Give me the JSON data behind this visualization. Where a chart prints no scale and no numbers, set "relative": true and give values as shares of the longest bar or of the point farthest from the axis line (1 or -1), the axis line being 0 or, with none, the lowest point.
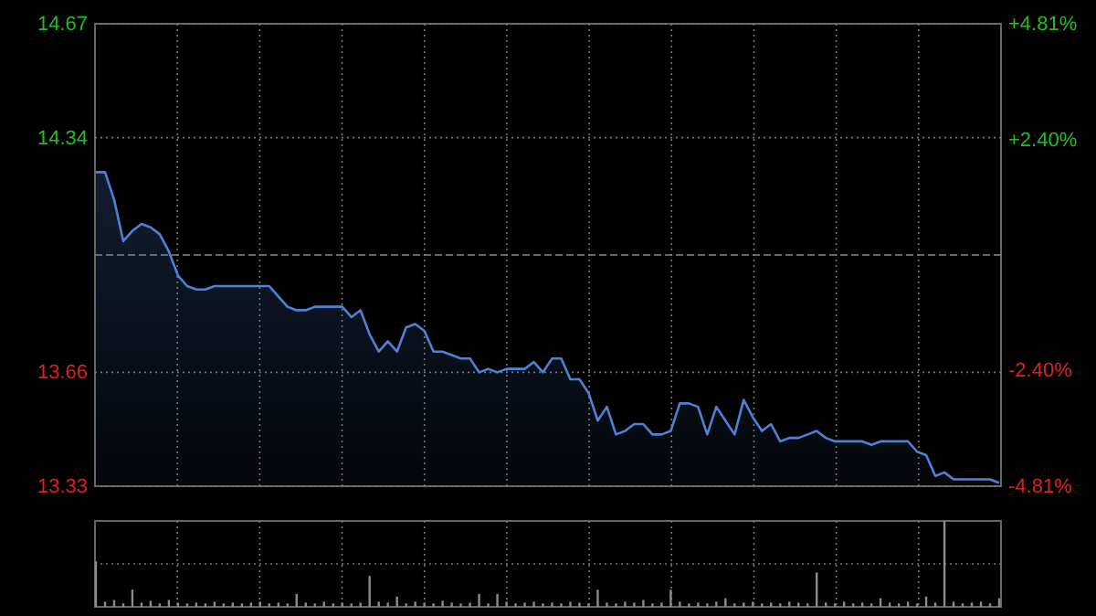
{
  "chart_data": [
    {
      "type": "area",
      "categories": [
        null,
        null,
        null,
        null,
        null,
        null,
        null,
        null,
        null,
        null,
        null,
        null,
        null,
        null,
        null,
        null,
        null,
        null,
        null,
        null,
        null,
        null,
        null,
        null,
        null,
        null,
        null,
        null,
        null,
        null,
        null,
        null,
        null,
        null,
        null,
        null,
        null,
        null,
        null,
        null,
        null,
        null,
        null,
        null,
        null,
        null,
        null,
        null,
        null,
        null,
        null,
        null,
        null,
        null,
        null,
        null,
        null,
        null,
        null,
        null,
        null,
        null,
        null,
        null,
        null,
        null,
        null,
        null,
        null,
        null,
        null,
        null,
        null,
        null,
        null,
        null,
        null,
        null,
        null,
        null,
        null,
        null,
        null,
        null,
        null,
        null,
        null,
        null,
        null,
        null,
        null,
        null,
        null,
        null,
        null,
        null,
        null,
        null,
        null,
        null
      ],
      "series": [
        {
          "color": "#4d82d6",
          "values": [
            14.24,
            14.24,
            14.16,
            14.04,
            14.07,
            14.09,
            14.08,
            14.06,
            14.01,
            13.94,
            13.91,
            13.9,
            13.9,
            13.91,
            13.91,
            13.91,
            13.91,
            13.91,
            13.91,
            13.91,
            13.88,
            13.85,
            13.84,
            13.84,
            13.85,
            13.85,
            13.85,
            13.85,
            13.82,
            13.84,
            13.77,
            13.72,
            13.75,
            13.72,
            13.79,
            13.8,
            13.78,
            13.72,
            13.72,
            13.71,
            13.7,
            13.7,
            13.66,
            13.67,
            13.66,
            13.67,
            13.67,
            13.67,
            13.69,
            13.66,
            13.7,
            13.7,
            13.64,
            13.64,
            13.6,
            13.52,
            13.56,
            13.48,
            13.49,
            13.51,
            13.51,
            13.48,
            13.48,
            13.49,
            13.57,
            13.57,
            13.56,
            13.48,
            13.56,
            13.52,
            13.48,
            13.58,
            13.53,
            13.49,
            13.51,
            13.46,
            13.47,
            13.47,
            13.48,
            13.49,
            13.47,
            13.46,
            13.46,
            13.46,
            13.46,
            13.45,
            13.46,
            13.46,
            13.46,
            13.46,
            13.43,
            13.42,
            13.36,
            13.37,
            13.35,
            13.35,
            13.35,
            13.35,
            13.35,
            13.34
          ]
        }
      ],
      "ylim": [
        13.33,
        14.67
      ],
      "yticks": [
        13.33,
        13.66,
        14.34,
        14.67
      ],
      "y2lim": [
        -4.81,
        4.81
      ],
      "y2ticks": [
        {
          "value": -4.81,
          "label": "-4.81%"
        },
        {
          "value": -2.4,
          "label": "-2.40%"
        },
        {
          "value": 2.4,
          "label": "+2.40%"
        },
        {
          "value": 4.81,
          "label": "+4.81%"
        }
      ],
      "ref_lines": [
        {
          "axis": "y",
          "value": 14.0,
          "label": null,
          "color": "#888888",
          "line_style": "dashed"
        }
      ],
      "grid": true,
      "tick_labels": "y"
    },
    {
      "type": "bar",
      "relative": true,
      "categories": [
        null,
        null,
        null,
        null,
        null,
        null,
        null,
        null,
        null,
        null,
        null,
        null,
        null,
        null,
        null,
        null,
        null,
        null,
        null,
        null,
        null,
        null,
        null,
        null,
        null,
        null,
        null,
        null,
        null,
        null,
        null,
        null,
        null,
        null,
        null,
        null,
        null,
        null,
        null,
        null,
        null,
        null,
        null,
        null,
        null,
        null,
        null,
        null,
        null,
        null,
        null,
        null,
        null,
        null,
        null,
        null,
        null,
        null,
        null,
        null,
        null,
        null,
        null,
        null,
        null,
        null,
        null,
        null,
        null,
        null,
        null,
        null,
        null,
        null,
        null,
        null,
        null,
        null,
        null,
        null,
        null,
        null,
        null,
        null,
        null,
        null,
        null,
        null,
        null,
        null,
        null,
        null,
        null,
        null,
        null,
        null,
        null,
        null,
        null,
        null
      ],
      "series": [
        {
          "color": "#8c8c8c",
          "values": [
            0.53,
            0.06,
            0.08,
            0.04,
            0.2,
            0.05,
            0.07,
            0.04,
            0.08,
            0.05,
            0.04,
            0.05,
            0.04,
            0.06,
            0.04,
            0.05,
            0.04,
            0.05,
            0.06,
            0.04,
            0.05,
            0.04,
            0.15,
            0.05,
            0.04,
            0.06,
            0.04,
            0.05,
            0.04,
            0.05,
            0.36,
            0.06,
            0.05,
            0.12,
            0.04,
            0.06,
            0.05,
            0.04,
            0.07,
            0.05,
            0.04,
            0.05,
            0.15,
            0.04,
            0.15,
            0.06,
            0.04,
            0.05,
            0.06,
            0.04,
            0.05,
            0.04,
            0.06,
            0.05,
            0.04,
            0.2,
            0.05,
            0.04,
            0.06,
            0.05,
            0.08,
            0.04,
            0.05,
            0.2,
            0.06,
            0.04,
            0.05,
            0.04,
            0.06,
            0.1,
            0.04,
            0.05,
            0.06,
            0.04,
            0.05,
            0.04,
            0.06,
            0.05,
            0.04,
            0.4,
            0.05,
            0.04,
            0.06,
            0.04,
            0.05,
            0.04,
            0.1,
            0.05,
            0.04,
            0.06,
            0.04,
            0.12,
            0.05,
            1,
            0.06,
            0.04,
            0.05,
            0.06,
            0.04,
            0.1
          ]
        }
      ],
      "grid": true,
      "tick_labels": false
    }
  ]
}
